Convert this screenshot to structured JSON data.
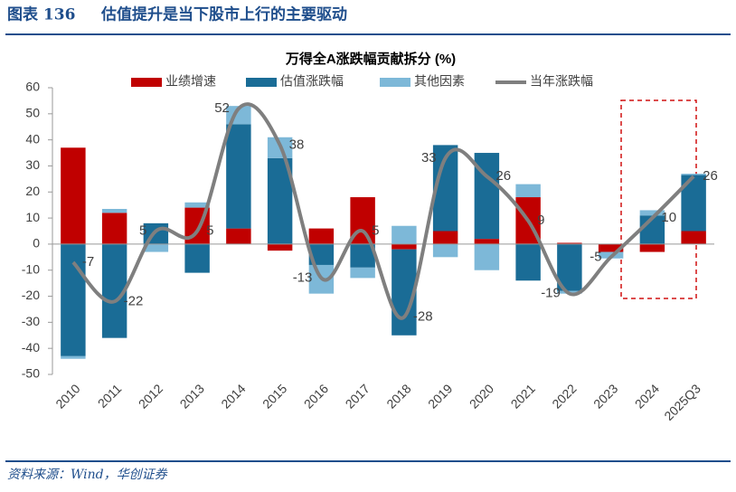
{
  "header": {
    "label": "图表 136",
    "title": "估值提升是当下股市上行的主要驱动"
  },
  "footer": {
    "source": "资料来源：Wind，华创证券"
  },
  "chart_data": {
    "type": "bar",
    "stacked": true,
    "title": "万得全A涨跌幅贡献拆分 (%)",
    "categories": [
      "2010",
      "2011",
      "2012",
      "2013",
      "2014",
      "2015",
      "2016",
      "2017",
      "2018",
      "2019",
      "2020",
      "2021",
      "2022",
      "2023",
      "2024",
      "2025Q3"
    ],
    "series": [
      {
        "name": "业绩增速",
        "color": "#c00000",
        "values": [
          37,
          12,
          0,
          14,
          6,
          -2.5,
          6,
          18,
          -2,
          5,
          2,
          18,
          0.5,
          -3,
          -3,
          5
        ]
      },
      {
        "name": "估值涨跌幅",
        "color": "#1a6c96",
        "values": [
          -43,
          -36,
          8,
          -11,
          40,
          33,
          -8,
          -9,
          -33,
          33,
          33,
          -14,
          -18,
          0,
          11,
          21.5
        ]
      },
      {
        "name": "其他因素",
        "color": "#7db8d8",
        "values": [
          -1,
          1.5,
          -3,
          2,
          7,
          8,
          -11,
          -4,
          7,
          -5,
          -10,
          5,
          -1,
          -2.5,
          2,
          0.5
        ]
      },
      {
        "name": "当年涨跌幅",
        "color": "#7f7f7f",
        "kind": "line",
        "values": [
          -7,
          -22,
          5,
          5,
          52,
          38,
          -13,
          5,
          -28,
          33,
          26,
          9,
          -19,
          -5,
          10,
          26
        ]
      }
    ],
    "ylim": [
      -50,
      60
    ],
    "yticks": [
      -50,
      -40,
      -30,
      -20,
      -10,
      0,
      10,
      20,
      30,
      40,
      50,
      60
    ],
    "grid": false
  }
}
